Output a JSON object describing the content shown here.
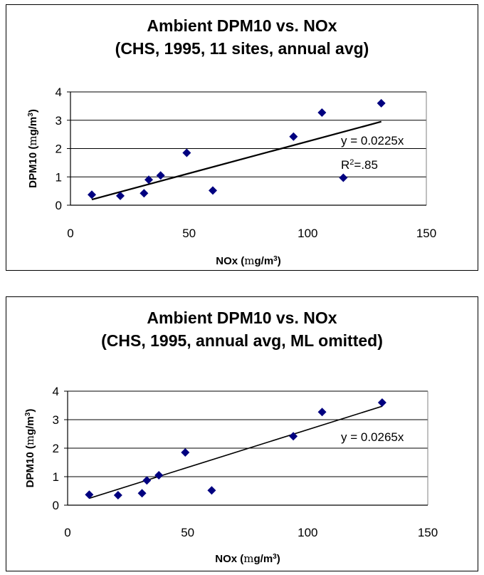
{
  "chart_data": [
    {
      "type": "scatter",
      "title": "Ambient DPM10 vs. NOx",
      "subtitle": "(CHS, 1995, 11 sites, annual avg)",
      "xlabel": "NOx (mg/m3)",
      "ylabel": "DPM10 (mg/m3)",
      "xlabel_parts": {
        "main": "NOx (",
        "unit": "m",
        "rest": "g/m",
        "sup": "3",
        "end": ")"
      },
      "ylabel_parts": {
        "main": "DPM10 (",
        "unit": "m",
        "rest": "g/m",
        "sup": "3",
        "end": ")"
      },
      "xlim": [
        0,
        150
      ],
      "ylim": [
        0,
        4
      ],
      "xticks": [
        0,
        50,
        100,
        150
      ],
      "yticks": [
        0,
        1,
        2,
        3,
        4
      ],
      "grid": "horizontal",
      "marker_color": "#000080",
      "points": [
        {
          "x": 9,
          "y": 0.37
        },
        {
          "x": 21,
          "y": 0.33
        },
        {
          "x": 31,
          "y": 0.42
        },
        {
          "x": 33,
          "y": 0.9
        },
        {
          "x": 38,
          "y": 1.05
        },
        {
          "x": 49,
          "y": 1.85
        },
        {
          "x": 60,
          "y": 0.52
        },
        {
          "x": 94,
          "y": 2.42
        },
        {
          "x": 106,
          "y": 3.27
        },
        {
          "x": 115,
          "y": 0.97
        },
        {
          "x": 131,
          "y": 3.6
        }
      ],
      "trendline": {
        "x": [
          9,
          131
        ],
        "y": [
          0.2,
          2.95
        ],
        "label_eq": "y  = 0.0225x",
        "label_r2_base": "R",
        "label_r2_sup": "2",
        "label_r2_val": "=.85"
      }
    },
    {
      "type": "scatter",
      "title": "Ambient DPM10 vs. NOx",
      "subtitle": "(CHS, 1995, annual avg, ML omitted)",
      "xlabel": "NOx (mg/m3)",
      "ylabel": "DPM10 (mg/m3)",
      "xlabel_parts": {
        "main": "NOx (",
        "unit": "m",
        "rest": "g/m",
        "sup": "3",
        "end": ")"
      },
      "ylabel_parts": {
        "main": "DPM10 (",
        "unit": "m",
        "rest": "g/m",
        "sup": "3",
        "end": ")"
      },
      "xlim": [
        0,
        150
      ],
      "ylim": [
        0,
        4
      ],
      "xticks": [
        0,
        50,
        100,
        150
      ],
      "yticks": [
        0,
        1,
        2,
        3,
        4
      ],
      "grid": "horizontal",
      "marker_color": "#000080",
      "points": [
        {
          "x": 9,
          "y": 0.37
        },
        {
          "x": 21,
          "y": 0.35
        },
        {
          "x": 31,
          "y": 0.42
        },
        {
          "x": 33,
          "y": 0.87
        },
        {
          "x": 38,
          "y": 1.05
        },
        {
          "x": 49,
          "y": 1.85
        },
        {
          "x": 60,
          "y": 0.52
        },
        {
          "x": 94,
          "y": 2.42
        },
        {
          "x": 106,
          "y": 3.27
        },
        {
          "x": 131,
          "y": 3.6
        }
      ],
      "trendline": {
        "x": [
          9,
          131
        ],
        "y": [
          0.24,
          3.47
        ],
        "label_eq": "y = 0.0265x"
      }
    }
  ]
}
